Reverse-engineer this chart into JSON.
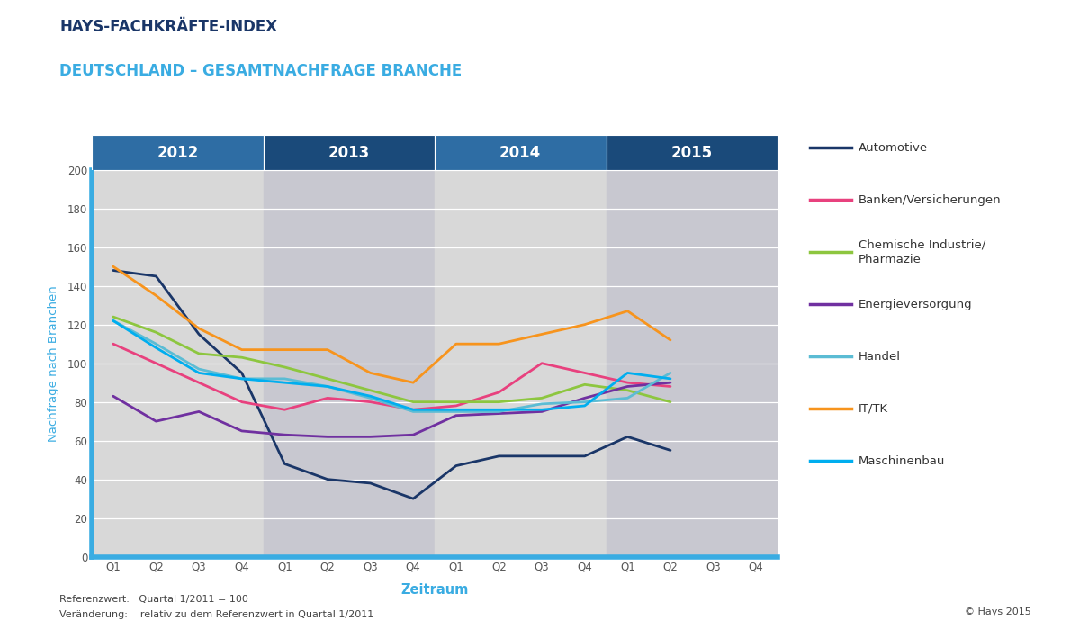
{
  "title1": "HAYS-FACHKRÄFTE-INDEX",
  "title2": "DEUTSCHLAND – GESAMTNACHFRAGE BRANCHE",
  "ylabel": "Nachfrage nach Branchen",
  "xlabel": "Zeitraum",
  "footer_left1": "Referenzwert:   Quartal 1/2011 = 100",
  "footer_left2": "Veränderung:    relativ zu dem Referenzwert in Quartal 1/2011",
  "footer_right": "© Hays 2015",
  "x_labels": [
    "Q1",
    "Q2",
    "Q3",
    "Q4",
    "Q1",
    "Q2",
    "Q3",
    "Q4",
    "Q1",
    "Q2",
    "Q3",
    "Q4",
    "Q1",
    "Q2",
    "Q3",
    "Q4"
  ],
  "year_labels": [
    "2012",
    "2013",
    "2014",
    "2015"
  ],
  "ylim": [
    0,
    200
  ],
  "yticks": [
    0,
    20,
    40,
    60,
    80,
    100,
    120,
    140,
    160,
    180,
    200
  ],
  "background_color": "#ffffff",
  "plot_bg_colors": [
    "#d8d8d8",
    "#c8c8d0",
    "#d8d8d8",
    "#c8c8d0"
  ],
  "year_header_colors": [
    "#2e6da4",
    "#1a4a7a",
    "#2e6da4",
    "#1a4a7a"
  ],
  "axis_color": "#3aace2",
  "tick_color": "#555555",
  "series": [
    {
      "name": "Automotive",
      "color": "#1a3668",
      "data": [
        148,
        145,
        115,
        95,
        48,
        40,
        38,
        30,
        47,
        52,
        52,
        52,
        62,
        55,
        null,
        null
      ]
    },
    {
      "name": "Banken/Versicherungen",
      "color": "#e8417e",
      "data": [
        110,
        100,
        90,
        80,
        76,
        82,
        80,
        76,
        78,
        85,
        100,
        95,
        90,
        88,
        null,
        null
      ]
    },
    {
      "name": "Chemische Industrie/\nPharmazie",
      "color": "#8dc63f",
      "data": [
        124,
        116,
        105,
        103,
        98,
        92,
        86,
        80,
        80,
        80,
        82,
        89,
        86,
        80,
        null,
        null
      ]
    },
    {
      "name": "Energieversorgung",
      "color": "#7030a0",
      "data": [
        83,
        70,
        75,
        65,
        63,
        62,
        62,
        63,
        73,
        74,
        75,
        82,
        88,
        90,
        null,
        null
      ]
    },
    {
      "name": "Handel",
      "color": "#5bbcd4",
      "data": [
        122,
        110,
        97,
        92,
        92,
        88,
        82,
        75,
        75,
        75,
        79,
        80,
        82,
        95,
        null,
        null
      ]
    },
    {
      "name": "IT/TK",
      "color": "#f7941d",
      "data": [
        150,
        135,
        118,
        107,
        107,
        107,
        95,
        90,
        110,
        110,
        115,
        120,
        127,
        112,
        null,
        null
      ]
    },
    {
      "name": "Maschinenbau",
      "color": "#00aeef",
      "data": [
        122,
        108,
        95,
        92,
        90,
        88,
        83,
        76,
        76,
        76,
        76,
        78,
        95,
        92,
        null,
        null
      ]
    }
  ]
}
